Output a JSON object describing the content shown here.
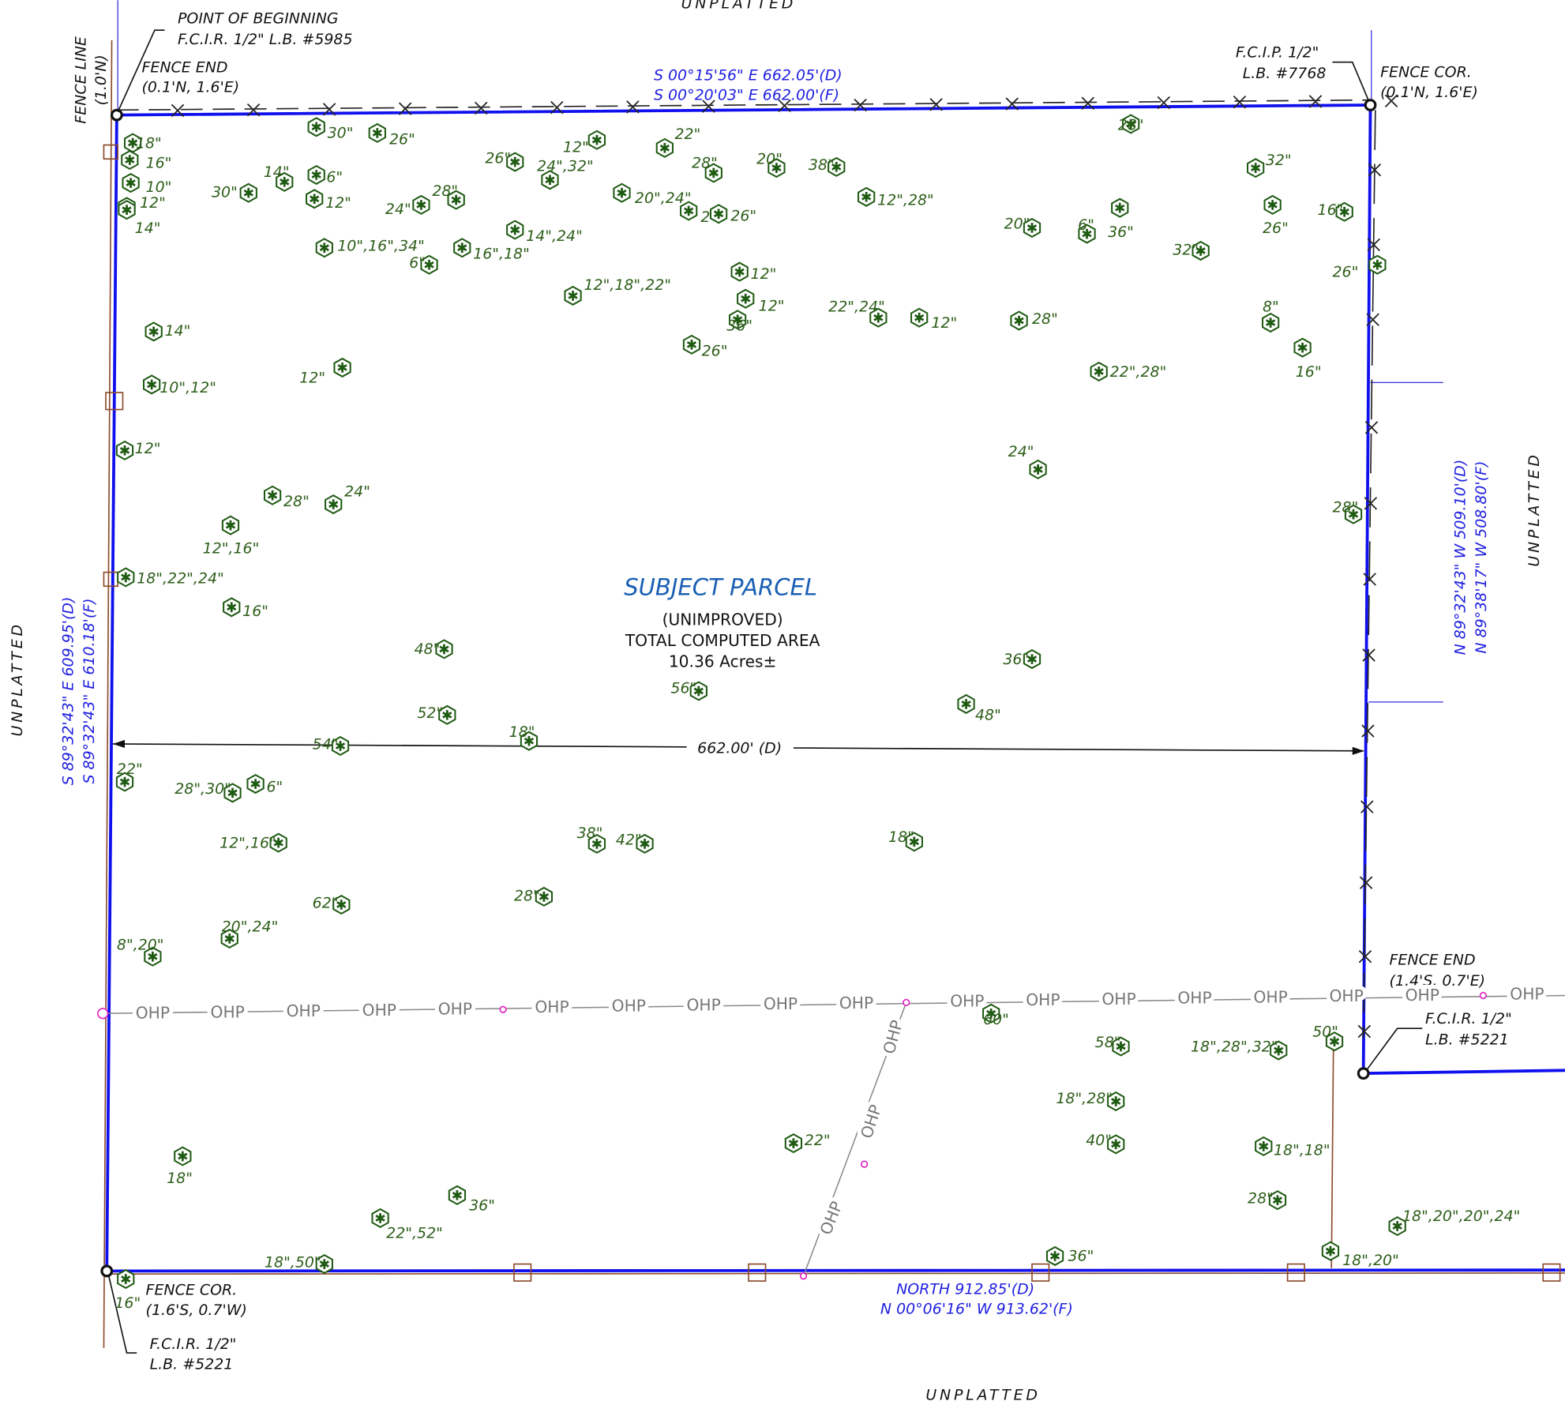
{
  "unplatted": [
    "UNPLATTED",
    "UNPLATTED",
    "UNPLATTED",
    "UNPLATTED"
  ],
  "point_of_beginning": {
    "title": "POINT OF BEGINNING",
    "monument": "F.C.I.R. 1/2\" L.B. #5985"
  },
  "fence_line": {
    "title": "FENCE LINE",
    "offset": "(1.0'N)"
  },
  "fence_end_nw": {
    "title": "FENCE END",
    "offset": "(0.1'N, 1.6'E)"
  },
  "north_bearing": {
    "deed": "S 00°15'56\" E  662.05'(D)",
    "field": "S 00°20'03\" E  662.00'(F)"
  },
  "ne_monument": {
    "title": "F.C.I.P. 1/2\"",
    "lb": "L.B. #7768"
  },
  "fence_cor_ne": {
    "title": "FENCE COR.",
    "offset": "(0.1'N, 1.6'E)"
  },
  "east_bearing": {
    "deed": "N 89°32'43\" W  509.10'(D)",
    "field": "N 89°38'17\" W  508.80'(F)"
  },
  "west_bearing": {
    "deed": "S 89°32'43\" E  609.95'(D)",
    "field": "S 89°32'43\" E  610.18'(F)"
  },
  "parcel": {
    "title": "SUBJECT PARCEL",
    "status": "(UNIMPROVED)",
    "area_label": "TOTAL COMPUTED AREA",
    "area": "10.36 Acres±"
  },
  "width_dimension": "662.00' (D)",
  "fence_end_se": {
    "title": "FENCE END",
    "offset": "(1.4'S, 0.7'E)"
  },
  "se_monument": {
    "title": "F.C.I.R. 1/2\"",
    "lb": "L.B. #5221"
  },
  "fence_cor_sw": {
    "title": "FENCE COR.",
    "offset": "(1.6'S, 0.7'W)"
  },
  "sw_monument": {
    "title": "F.C.I.R. 1/2\"",
    "lb": "L.B. #5221"
  },
  "south_bearing": {
    "deed": "NORTH  912.85'(D)",
    "field": "N 00°06'16\" W  913.62'(F)"
  },
  "ohp_labels": [
    "OHP",
    "OHP",
    "OHP",
    "OHP",
    "OHP",
    "OHP",
    "OHP",
    "OHP",
    "OHP",
    "OHP",
    "OHP",
    "OHP",
    "OHP",
    "OHP",
    "OHP",
    "OHP",
    "OHP",
    "OHP",
    "OHP",
    "OHP",
    "OHP"
  ],
  "tree_labels": [
    "30\"",
    "26\"",
    "18\"",
    "16\"",
    "10\"",
    "12\"",
    "14\"",
    "30\"",
    "14\"",
    "6\"",
    "12\"",
    "24\"",
    "28\"",
    "26\"",
    "24\",32\"",
    "14\",24\"",
    "16\",18\"",
    "6\"",
    "10\",16\",34\"",
    "12\"",
    "22\"",
    "28\"",
    "20\"",
    "38\"",
    "12\",28\"",
    "20\",24\"",
    "24\"",
    "26\"",
    "12\",18\",22\"",
    "12\"",
    "12\"",
    "36\"",
    "26\"",
    "22\",24\"",
    "12\"",
    "28\"",
    "22\",28\"",
    "20\"",
    "6\"",
    "36\"",
    "28\"",
    "32\"",
    "26\"",
    "16\"",
    "32\"",
    "26\"",
    "8\"",
    "16\"",
    "14\"",
    "12\"",
    "10\",12\"",
    "12\"",
    "28\"",
    "12\",16\"",
    "24\"",
    "18\",22\",24\"",
    "16\"",
    "48\"",
    "56\"",
    "52\"",
    "48\"",
    "18\"",
    "54\"",
    "22\"",
    "6\"",
    "28\",30\"",
    "12\",16\"",
    "38\"",
    "42\"",
    "18\"",
    "28\"",
    "62\"",
    "20\",24\"",
    "8\",20\"",
    "36\"",
    "24\"",
    "28\"",
    "58\"",
    "40\"",
    "18\",28\"",
    "28\"",
    "36\"",
    "18\",20\"",
    "18\",20\",20\",24\"",
    "22\"",
    "18\",50\"",
    "60\"",
    "50\"",
    "18\",28\",32\"",
    "18\",18\"",
    "36\"",
    "22\",52\"",
    "18\"",
    "16\""
  ]
}
